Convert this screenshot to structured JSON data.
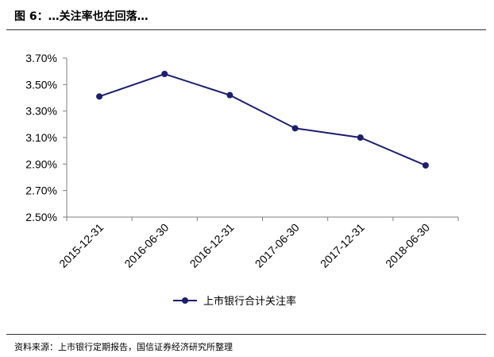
{
  "figure": {
    "title": "图 6：…关注率也在回落…",
    "source": "资料来源：上市银行定期报告，国信证券经济研究所整理"
  },
  "chart_data": {
    "type": "line",
    "categories": [
      "2015-12-31",
      "2016-06-30",
      "2016-12-31",
      "2017-06-30",
      "2017-12-31",
      "2018-06-30"
    ],
    "series": [
      {
        "name": "上市银行合计关注率",
        "values": [
          3.41,
          3.58,
          3.42,
          3.17,
          3.1,
          2.89
        ],
        "color": "#1b1f6e"
      }
    ],
    "y_ticks": [
      "3.70%",
      "3.50%",
      "3.30%",
      "3.10%",
      "2.90%",
      "2.70%",
      "2.50%"
    ],
    "ylim": [
      2.5,
      3.7
    ],
    "y_unit": "%",
    "grid": false,
    "legend_position": "bottom-center"
  }
}
